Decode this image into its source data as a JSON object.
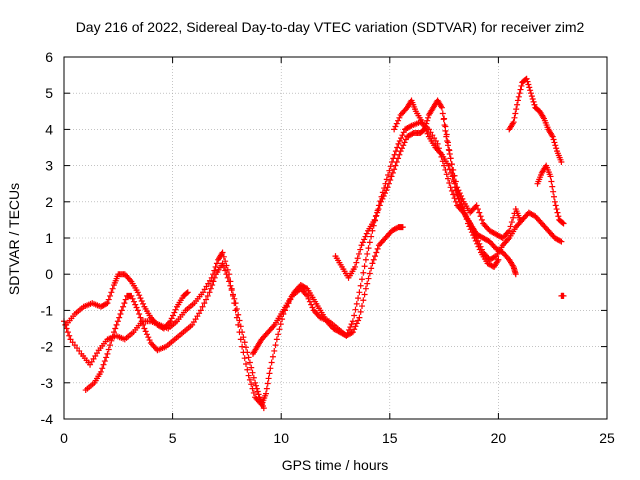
{
  "chart_data": {
    "type": "scatter",
    "title": "Day 216 of 2022, Sidereal Day-to-day VTEC variation (SDTVAR) for receiver zim2",
    "xlabel": "GPS time / hours",
    "ylabel": "SDTVAR / TECUs",
    "xlim": [
      0,
      25
    ],
    "ylim": [
      -4,
      6
    ],
    "x_ticks": [
      0,
      5,
      10,
      15,
      20,
      25
    ],
    "x_tick_labels": [
      "0",
      "5",
      "10",
      "15",
      "20",
      "25"
    ],
    "y_ticks": [
      -4,
      -3,
      -2,
      -1,
      0,
      1,
      2,
      3,
      4,
      5,
      6
    ],
    "y_tick_labels": [
      "-4",
      "-3",
      "-2",
      "-1",
      "0",
      "1",
      "2",
      "3",
      "4",
      "5",
      "6"
    ],
    "grid": true,
    "marker": "plus",
    "series": [
      {
        "color": "#ff0000",
        "tracks": [
          [
            [
              0.0,
              -1.3
            ],
            [
              0.3,
              -1.8
            ],
            [
              0.8,
              -2.2
            ],
            [
              1.2,
              -2.5
            ],
            [
              1.6,
              -2.1
            ],
            [
              2.0,
              -1.8
            ],
            [
              2.4,
              -1.7
            ],
            [
              2.8,
              -1.8
            ],
            [
              3.2,
              -1.6
            ],
            [
              3.6,
              -1.3
            ],
            [
              4.0,
              -1.3
            ],
            [
              4.4,
              -1.4
            ],
            [
              4.8,
              -1.5
            ],
            [
              5.2,
              -1.3
            ],
            [
              5.6,
              -1.0
            ],
            [
              6.0,
              -0.8
            ],
            [
              6.4,
              -0.5
            ],
            [
              6.8,
              -0.1
            ],
            [
              7.1,
              0.4
            ],
            [
              7.3,
              0.6
            ],
            [
              7.6,
              0.0
            ],
            [
              7.9,
              -1.0
            ],
            [
              8.2,
              -2.0
            ],
            [
              8.5,
              -2.8
            ],
            [
              8.8,
              -3.4
            ],
            [
              9.1,
              -3.6
            ],
            [
              9.3,
              -3.3
            ],
            [
              9.5,
              -2.6
            ],
            [
              9.8,
              -1.8
            ],
            [
              10.1,
              -1.1
            ],
            [
              10.5,
              -0.6
            ],
            [
              10.9,
              -0.4
            ],
            [
              11.2,
              -0.6
            ],
            [
              11.5,
              -1.0
            ],
            [
              11.8,
              -1.2
            ],
            [
              12.2,
              -1.3
            ],
            [
              12.6,
              -1.5
            ],
            [
              13.0,
              -1.7
            ],
            [
              13.3,
              -1.3
            ],
            [
              13.6,
              -0.5
            ],
            [
              13.9,
              0.4
            ],
            [
              14.2,
              1.2
            ],
            [
              14.5,
              1.9
            ],
            [
              14.8,
              2.5
            ],
            [
              15.1,
              3.1
            ],
            [
              15.4,
              3.6
            ],
            [
              15.7,
              4.0
            ],
            [
              16.0,
              4.1
            ],
            [
              16.4,
              4.2
            ],
            [
              16.8,
              4.0
            ],
            [
              17.2,
              3.6
            ],
            [
              17.5,
              3.0
            ],
            [
              17.8,
              2.4
            ],
            [
              18.1,
              1.9
            ],
            [
              18.4,
              1.7
            ],
            [
              18.7,
              1.4
            ],
            [
              19.0,
              1.0
            ],
            [
              19.3,
              0.6
            ],
            [
              19.6,
              0.4
            ],
            [
              19.9,
              0.5
            ],
            [
              20.2,
              0.8
            ],
            [
              20.5,
              1.0
            ],
            [
              20.8,
              1.3
            ],
            [
              21.1,
              1.5
            ],
            [
              21.4,
              1.7
            ],
            [
              21.7,
              1.6
            ],
            [
              22.0,
              1.4
            ],
            [
              22.3,
              1.2
            ],
            [
              22.6,
              1.0
            ],
            [
              22.9,
              0.9
            ]
          ],
          [
            [
              0.1,
              -1.4
            ],
            [
              0.5,
              -1.1
            ],
            [
              0.9,
              -0.9
            ],
            [
              1.3,
              -0.8
            ],
            [
              1.7,
              -0.9
            ],
            [
              2.0,
              -0.8
            ],
            [
              2.3,
              -0.3
            ],
            [
              2.5,
              0.0
            ],
            [
              2.8,
              0.0
            ],
            [
              3.1,
              -0.2
            ],
            [
              3.4,
              -0.5
            ],
            [
              3.7,
              -0.9
            ],
            [
              4.0,
              -1.2
            ],
            [
              4.3,
              -1.4
            ],
            [
              4.6,
              -1.5
            ],
            [
              4.9,
              -1.3
            ],
            [
              5.2,
              -0.9
            ],
            [
              5.5,
              -0.6
            ],
            [
              5.7,
              -0.5
            ]
          ],
          [
            [
              1.0,
              -3.2
            ],
            [
              1.4,
              -3.0
            ],
            [
              1.7,
              -2.7
            ],
            [
              2.0,
              -2.2
            ],
            [
              2.3,
              -1.6
            ],
            [
              2.6,
              -1.1
            ],
            [
              2.9,
              -0.6
            ],
            [
              3.1,
              -0.6
            ],
            [
              3.4,
              -1.0
            ],
            [
              3.7,
              -1.5
            ],
            [
              4.0,
              -1.9
            ],
            [
              4.3,
              -2.1
            ],
            [
              4.7,
              -2.0
            ],
            [
              5.1,
              -1.8
            ],
            [
              5.5,
              -1.6
            ],
            [
              5.9,
              -1.4
            ],
            [
              6.3,
              -1.0
            ],
            [
              6.7,
              -0.5
            ],
            [
              7.0,
              0.0
            ],
            [
              7.3,
              0.3
            ],
            [
              7.6,
              -0.2
            ],
            [
              7.9,
              -0.8
            ],
            [
              8.2,
              -1.6
            ],
            [
              8.5,
              -2.3
            ],
            [
              8.8,
              -3.0
            ],
            [
              9.0,
              -3.4
            ],
            [
              9.2,
              -3.7
            ]
          ],
          [
            [
              8.7,
              -2.2
            ],
            [
              8.9,
              -2.0
            ],
            [
              9.1,
              -1.8
            ],
            [
              9.4,
              -1.6
            ],
            [
              9.7,
              -1.4
            ],
            [
              10.0,
              -1.1
            ],
            [
              10.3,
              -0.8
            ],
            [
              10.6,
              -0.5
            ],
            [
              10.9,
              -0.3
            ],
            [
              11.2,
              -0.4
            ],
            [
              11.5,
              -0.7
            ],
            [
              11.8,
              -1.0
            ],
            [
              12.1,
              -1.3
            ],
            [
              12.4,
              -1.5
            ],
            [
              12.7,
              -1.6
            ],
            [
              13.0,
              -1.7
            ],
            [
              13.3,
              -1.6
            ],
            [
              13.6,
              -1.2
            ],
            [
              13.9,
              -0.4
            ],
            [
              14.2,
              0.3
            ],
            [
              14.5,
              0.8
            ],
            [
              14.8,
              1.0
            ],
            [
              15.1,
              1.2
            ],
            [
              15.4,
              1.3
            ],
            [
              15.6,
              1.3
            ]
          ],
          [
            [
              12.5,
              0.5
            ],
            [
              12.8,
              0.2
            ],
            [
              13.1,
              -0.1
            ],
            [
              13.4,
              0.2
            ],
            [
              13.7,
              0.8
            ],
            [
              14.0,
              1.2
            ],
            [
              14.3,
              1.5
            ],
            [
              14.6,
              2.0
            ],
            [
              14.9,
              2.4
            ],
            [
              15.2,
              2.9
            ],
            [
              15.5,
              3.4
            ],
            [
              15.8,
              3.8
            ],
            [
              16.1,
              3.9
            ],
            [
              16.4,
              3.9
            ],
            [
              16.6,
              4.0
            ],
            [
              16.8,
              4.4
            ],
            [
              17.0,
              4.6
            ],
            [
              17.2,
              4.8
            ],
            [
              17.4,
              4.6
            ],
            [
              17.6,
              3.8
            ],
            [
              17.8,
              3.2
            ],
            [
              18.0,
              2.4
            ],
            [
              18.2,
              2.0
            ],
            [
              18.5,
              1.6
            ],
            [
              18.8,
              1.3
            ],
            [
              19.0,
              1.1
            ],
            [
              19.3,
              1.0
            ],
            [
              19.6,
              0.9
            ],
            [
              19.9,
              0.7
            ],
            [
              20.2,
              0.6
            ],
            [
              20.5,
              0.4
            ],
            [
              20.7,
              0.2
            ],
            [
              20.8,
              0.0
            ]
          ],
          [
            [
              15.2,
              4.0
            ],
            [
              15.5,
              4.4
            ],
            [
              15.8,
              4.6
            ],
            [
              16.0,
              4.8
            ],
            [
              16.2,
              4.5
            ],
            [
              16.5,
              4.2
            ],
            [
              16.8,
              3.8
            ],
            [
              17.1,
              3.5
            ],
            [
              17.4,
              3.3
            ],
            [
              17.7,
              3.0
            ],
            [
              18.0,
              2.5
            ],
            [
              18.3,
              2.0
            ],
            [
              18.6,
              1.4
            ],
            [
              18.9,
              1.0
            ],
            [
              19.2,
              0.6
            ],
            [
              19.5,
              0.3
            ],
            [
              19.8,
              0.2
            ],
            [
              20.0,
              0.4
            ]
          ],
          [
            [
              17.5,
              4.3
            ],
            [
              17.8,
              3.2
            ],
            [
              18.1,
              2.4
            ],
            [
              18.4,
              2.0
            ],
            [
              18.7,
              1.7
            ],
            [
              19.0,
              1.9
            ],
            [
              19.3,
              1.4
            ],
            [
              19.6,
              1.2
            ],
            [
              19.9,
              1.1
            ],
            [
              20.2,
              1.0
            ],
            [
              20.5,
              1.2
            ],
            [
              20.8,
              1.8
            ],
            [
              21.0,
              1.5
            ]
          ],
          [
            [
              20.5,
              4.0
            ],
            [
              20.7,
              4.2
            ],
            [
              20.9,
              4.8
            ],
            [
              21.1,
              5.3
            ],
            [
              21.3,
              5.4
            ],
            [
              21.5,
              5.0
            ],
            [
              21.7,
              4.6
            ],
            [
              21.9,
              4.5
            ],
            [
              22.1,
              4.3
            ],
            [
              22.3,
              4.0
            ],
            [
              22.5,
              3.8
            ],
            [
              22.7,
              3.4
            ],
            [
              22.9,
              3.1
            ]
          ],
          [
            [
              21.8,
              2.5
            ],
            [
              22.0,
              2.8
            ],
            [
              22.2,
              3.0
            ],
            [
              22.4,
              2.7
            ],
            [
              22.6,
              2.0
            ],
            [
              22.8,
              1.5
            ],
            [
              23.0,
              1.4
            ]
          ],
          [
            [
              22.9,
              -0.6
            ],
            [
              23.0,
              -0.6
            ]
          ]
        ]
      }
    ]
  }
}
